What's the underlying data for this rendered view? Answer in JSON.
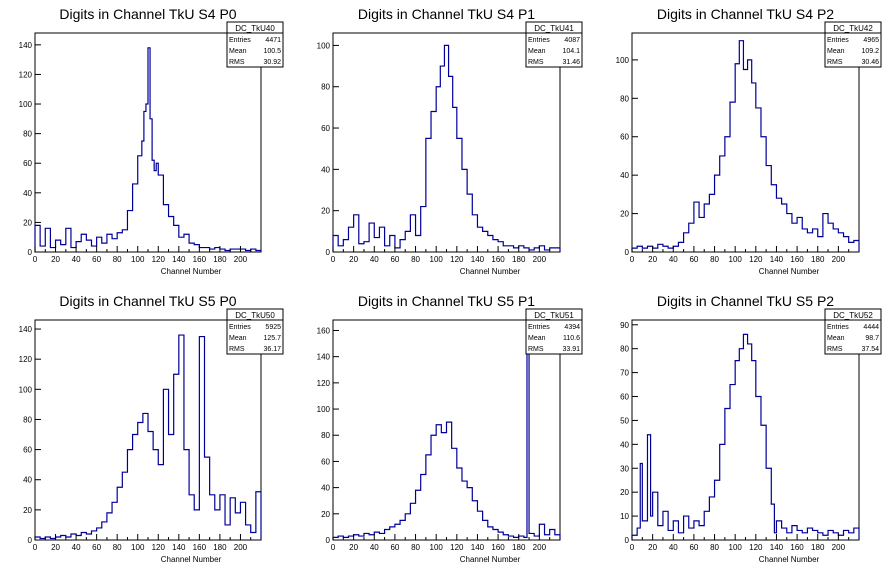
{
  "chart_data": [
    {
      "type": "histogram",
      "title": "Digits in Channel TkU S4 P0",
      "xlabel": "Channel Number",
      "xlim": [
        0,
        220
      ],
      "ylim": [
        0,
        148
      ],
      "xticks": [
        0,
        20,
        40,
        60,
        80,
        100,
        120,
        140,
        160,
        180,
        200
      ],
      "yticks": [
        0,
        20,
        40,
        60,
        80,
        100,
        120,
        140
      ],
      "stats": {
        "name": "DC_TkU40",
        "entries": "4471",
        "mean": "100.5",
        "rms": "30.92"
      },
      "series": [
        {
          "x": [
            0,
            5,
            10,
            15,
            20,
            25,
            30,
            35,
            40,
            45,
            50,
            55,
            60,
            65,
            70,
            75,
            80,
            85,
            90,
            95,
            100,
            104,
            106,
            108,
            110,
            112,
            114,
            116,
            118,
            120,
            125,
            130,
            135,
            140,
            145,
            150,
            155,
            160,
            165,
            170,
            175,
            180,
            185,
            190,
            195,
            200,
            205,
            210,
            215
          ],
          "values": [
            18,
            4,
            16,
            3,
            8,
            5,
            16,
            3,
            7,
            12,
            8,
            4,
            10,
            6,
            12,
            9,
            13,
            15,
            28,
            46,
            65,
            75,
            95,
            100,
            138,
            90,
            62,
            55,
            60,
            52,
            32,
            24,
            18,
            10,
            12,
            6,
            5,
            3,
            3,
            2,
            3,
            2,
            1,
            2,
            2,
            2,
            1,
            2,
            1
          ]
        }
      ]
    },
    {
      "type": "histogram",
      "title": "Digits in Channel TkU S4 P1",
      "xlabel": "Channel Number",
      "xlim": [
        0,
        220
      ],
      "ylim": [
        0,
        106
      ],
      "xticks": [
        0,
        20,
        40,
        60,
        80,
        100,
        120,
        140,
        160,
        180,
        200
      ],
      "yticks": [
        0,
        20,
        40,
        60,
        80,
        100
      ],
      "stats": {
        "name": "DC_TkU41",
        "entries": "4087",
        "mean": "104.1",
        "rms": "31.46"
      },
      "series": [
        {
          "x": [
            0,
            5,
            10,
            15,
            20,
            25,
            30,
            35,
            40,
            45,
            50,
            55,
            60,
            65,
            70,
            75,
            80,
            85,
            90,
            95,
            100,
            104,
            108,
            112,
            116,
            120,
            125,
            130,
            135,
            140,
            145,
            150,
            155,
            160,
            165,
            170,
            175,
            180,
            185,
            190,
            195,
            200,
            205,
            210,
            215
          ],
          "values": [
            8,
            3,
            6,
            12,
            18,
            4,
            5,
            14,
            7,
            12,
            3,
            8,
            2,
            6,
            10,
            18,
            8,
            22,
            55,
            68,
            80,
            90,
            100,
            85,
            70,
            55,
            40,
            28,
            18,
            12,
            10,
            8,
            6,
            5,
            3,
            3,
            2,
            3,
            2,
            1,
            2,
            3,
            1,
            2,
            2
          ]
        }
      ]
    },
    {
      "type": "histogram",
      "title": "Digits in Channel TkU S4 P2",
      "xlabel": "Channel Number",
      "xlim": [
        0,
        220
      ],
      "ylim": [
        0,
        114
      ],
      "xticks": [
        0,
        20,
        40,
        60,
        80,
        100,
        120,
        140,
        160,
        180,
        200
      ],
      "yticks": [
        0,
        20,
        40,
        60,
        80,
        100
      ],
      "stats": {
        "name": "DC_TkU42",
        "entries": "4965",
        "mean": "109.2",
        "rms": "30.46"
      },
      "series": [
        {
          "x": [
            0,
            5,
            10,
            15,
            20,
            25,
            30,
            35,
            40,
            45,
            50,
            55,
            60,
            65,
            70,
            75,
            80,
            85,
            90,
            95,
            100,
            104,
            108,
            112,
            116,
            120,
            125,
            130,
            135,
            140,
            145,
            150,
            155,
            160,
            165,
            170,
            175,
            180,
            185,
            190,
            195,
            200,
            205,
            210,
            215
          ],
          "values": [
            2,
            3,
            2,
            3,
            2,
            4,
            3,
            2,
            3,
            5,
            10,
            15,
            26,
            18,
            25,
            30,
            40,
            50,
            60,
            78,
            98,
            110,
            95,
            100,
            88,
            75,
            60,
            45,
            35,
            28,
            25,
            20,
            15,
            18,
            12,
            10,
            12,
            8,
            20,
            15,
            12,
            10,
            8,
            5,
            6
          ]
        }
      ]
    },
    {
      "type": "histogram",
      "title": "Digits in Channel TkU S5 P0",
      "xlabel": "Channel Number",
      "xlim": [
        0,
        220
      ],
      "ylim": [
        0,
        146
      ],
      "xticks": [
        0,
        20,
        40,
        60,
        80,
        100,
        120,
        140,
        160,
        180,
        200
      ],
      "yticks": [
        0,
        20,
        40,
        60,
        80,
        100,
        120,
        140
      ],
      "stats": {
        "name": "DC_TkU50",
        "entries": "5925",
        "mean": "125.7",
        "rms": "36.17"
      },
      "series": [
        {
          "x": [
            0,
            5,
            10,
            15,
            20,
            25,
            30,
            35,
            40,
            45,
            50,
            55,
            60,
            65,
            70,
            75,
            80,
            85,
            90,
            95,
            100,
            105,
            110,
            115,
            120,
            125,
            130,
            135,
            140,
            145,
            150,
            155,
            160,
            165,
            170,
            175,
            180,
            185,
            190,
            195,
            200,
            205,
            210,
            215
          ],
          "values": [
            2,
            1,
            2,
            1,
            2,
            3,
            2,
            4,
            3,
            5,
            4,
            6,
            8,
            12,
            18,
            25,
            35,
            45,
            60,
            70,
            78,
            84,
            72,
            60,
            50,
            100,
            70,
            110,
            136,
            60,
            30,
            20,
            135,
            55,
            30,
            20,
            30,
            10,
            28,
            18,
            25,
            10,
            5,
            32
          ]
        }
      ]
    },
    {
      "type": "histogram",
      "title": "Digits in Channel TkU S5 P1",
      "xlabel": "Channel Number",
      "xlim": [
        0,
        220
      ],
      "ylim": [
        0,
        168
      ],
      "xticks": [
        0,
        20,
        40,
        60,
        80,
        100,
        120,
        140,
        160,
        180,
        200
      ],
      "yticks": [
        0,
        20,
        40,
        60,
        80,
        100,
        120,
        140,
        160
      ],
      "stats": {
        "name": "DC_TkU51",
        "entries": "4394",
        "mean": "110.6",
        "rms": "33.91"
      },
      "series": [
        {
          "x": [
            0,
            5,
            10,
            15,
            20,
            25,
            30,
            35,
            40,
            45,
            50,
            55,
            60,
            65,
            70,
            75,
            80,
            85,
            90,
            95,
            100,
            105,
            110,
            115,
            120,
            125,
            130,
            135,
            140,
            145,
            150,
            155,
            160,
            165,
            170,
            175,
            180,
            185,
            188,
            190,
            195,
            200,
            205,
            210,
            215
          ],
          "values": [
            2,
            3,
            2,
            3,
            4,
            3,
            5,
            4,
            6,
            5,
            8,
            10,
            12,
            15,
            20,
            28,
            38,
            50,
            65,
            80,
            88,
            82,
            90,
            70,
            55,
            45,
            40,
            30,
            22,
            15,
            10,
            8,
            6,
            4,
            3,
            2,
            3,
            2,
            165,
            5,
            3,
            12,
            4,
            8,
            4
          ]
        }
      ]
    },
    {
      "type": "histogram",
      "title": "Digits in Channel TkU S5 P2",
      "xlabel": "Channel Number",
      "xlim": [
        0,
        220
      ],
      "ylim": [
        0,
        92
      ],
      "xticks": [
        0,
        20,
        40,
        60,
        80,
        100,
        120,
        140,
        160,
        180,
        200
      ],
      "yticks": [
        0,
        10,
        20,
        30,
        40,
        50,
        60,
        70,
        80,
        90
      ],
      "stats": {
        "name": "DC_TkU52",
        "entries": "4444",
        "mean": "98.7",
        "rms": "37.54"
      },
      "series": [
        {
          "x": [
            0,
            5,
            8,
            10,
            15,
            18,
            20,
            25,
            30,
            35,
            40,
            45,
            50,
            55,
            60,
            65,
            70,
            75,
            80,
            85,
            90,
            95,
            100,
            104,
            108,
            112,
            116,
            120,
            125,
            130,
            135,
            138,
            140,
            145,
            150,
            155,
            160,
            165,
            170,
            175,
            180,
            185,
            190,
            195,
            200,
            205,
            210,
            215
          ],
          "values": [
            2,
            5,
            32,
            8,
            44,
            10,
            20,
            6,
            12,
            4,
            8,
            3,
            10,
            5,
            8,
            6,
            12,
            18,
            25,
            40,
            55,
            65,
            75,
            80,
            86,
            82,
            75,
            60,
            48,
            30,
            15,
            3,
            8,
            5,
            3,
            6,
            4,
            3,
            5,
            4,
            3,
            2,
            4,
            3,
            2,
            4,
            3,
            5
          ]
        }
      ]
    }
  ]
}
